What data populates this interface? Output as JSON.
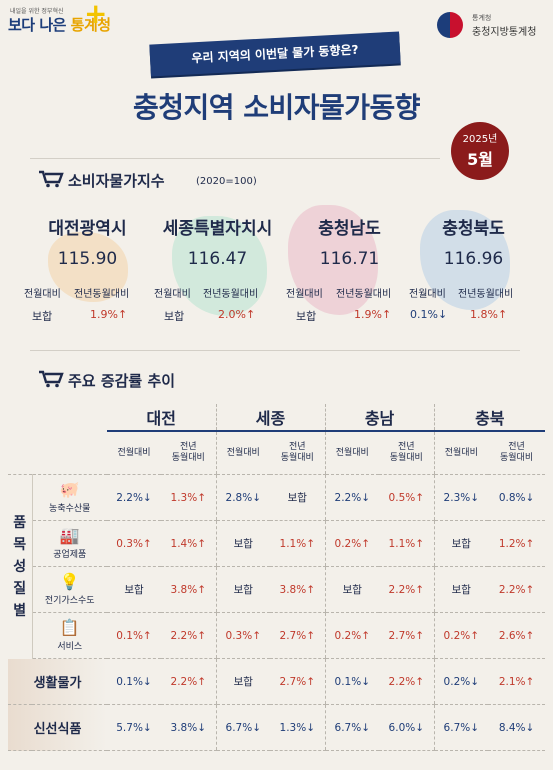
{
  "header": {
    "logo_small": "내일을 위한 정부혁신",
    "logo_main_a": "보다 나은 ",
    "logo_main_b": "통계청",
    "agency_small": "통계청",
    "agency_name": "충청지방통계청",
    "banner": "우리 지역의 이번달 물가 동향은?",
    "title": "충청지역 소비자물가동향",
    "date_year": "2025년",
    "date_month": "5월"
  },
  "cpi_section": {
    "title": "소비자물가지수",
    "subtitle": "(2020=100)",
    "regions": [
      {
        "name": "대전광역시",
        "index": "115.90",
        "mom_label": "전월대비",
        "yoy_label": "전년동월대비",
        "mom": "보합",
        "yoy": "1.9%↑"
      },
      {
        "name": "세종특별자치시",
        "index": "116.47",
        "mom_label": "전월대비",
        "yoy_label": "전년동월대비",
        "mom": "보합",
        "yoy": "2.0%↑"
      },
      {
        "name": "충청남도",
        "index": "116.71",
        "mom_label": "전월대비",
        "yoy_label": "전년동월대비",
        "mom": "보합",
        "yoy": "1.9%↑"
      },
      {
        "name": "충청북도",
        "index": "116.96",
        "mom_label": "전월대비",
        "yoy_label": "전년동월대비",
        "mom": "0.1%↓",
        "yoy": "1.8%↑"
      }
    ]
  },
  "trend_section": {
    "title": "주요 증감률 추이",
    "regions": [
      "대전",
      "세종",
      "충남",
      "충북"
    ],
    "sub_mom": "전월대비",
    "sub_yoy_a": "전년",
    "sub_yoy_b": "동월대비",
    "group_label": [
      "품",
      "목",
      "성",
      "질",
      "별"
    ],
    "rows": [
      {
        "name": "농축수산물",
        "icon": "piggy-icon",
        "values": [
          "2.2%↓",
          "1.3%↑",
          "2.8%↓",
          "보합",
          "2.2%↓",
          "0.5%↑",
          "2.3%↓",
          "0.8%↓"
        ]
      },
      {
        "name": "공업제품",
        "icon": "factory-icon",
        "values": [
          "0.3%↑",
          "1.4%↑",
          "보합",
          "1.1%↑",
          "0.2%↑",
          "1.1%↑",
          "보합",
          "1.2%↑"
        ]
      },
      {
        "name": "전기가스수도",
        "icon": "utility-icon",
        "values": [
          "보합",
          "3.8%↑",
          "보합",
          "3.8%↑",
          "보합",
          "2.2%↑",
          "보합",
          "2.2%↑"
        ]
      },
      {
        "name": "서비스",
        "icon": "service-icon",
        "values": [
          "0.1%↑",
          "2.2%↑",
          "0.3%↑",
          "2.7%↑",
          "0.2%↑",
          "2.7%↑",
          "0.2%↑",
          "2.6%↑"
        ]
      },
      {
        "name": "생활물가",
        "icon": "",
        "values": [
          "0.1%↓",
          "2.2%↑",
          "보합",
          "2.7%↑",
          "0.1%↓",
          "2.2%↑",
          "0.2%↓",
          "2.1%↑"
        ]
      },
      {
        "name": "신선식품",
        "icon": "",
        "values": [
          "5.7%↓",
          "3.8%↓",
          "6.7%↓",
          "1.3%↓",
          "6.7%↓",
          "6.0%↓",
          "6.7%↓",
          "8.4%↓"
        ]
      }
    ]
  },
  "colors": {
    "navy": "#1f3d78",
    "up": "#c0392b",
    "down": "#1f3d78",
    "date_bg": "#8b1b1b"
  }
}
